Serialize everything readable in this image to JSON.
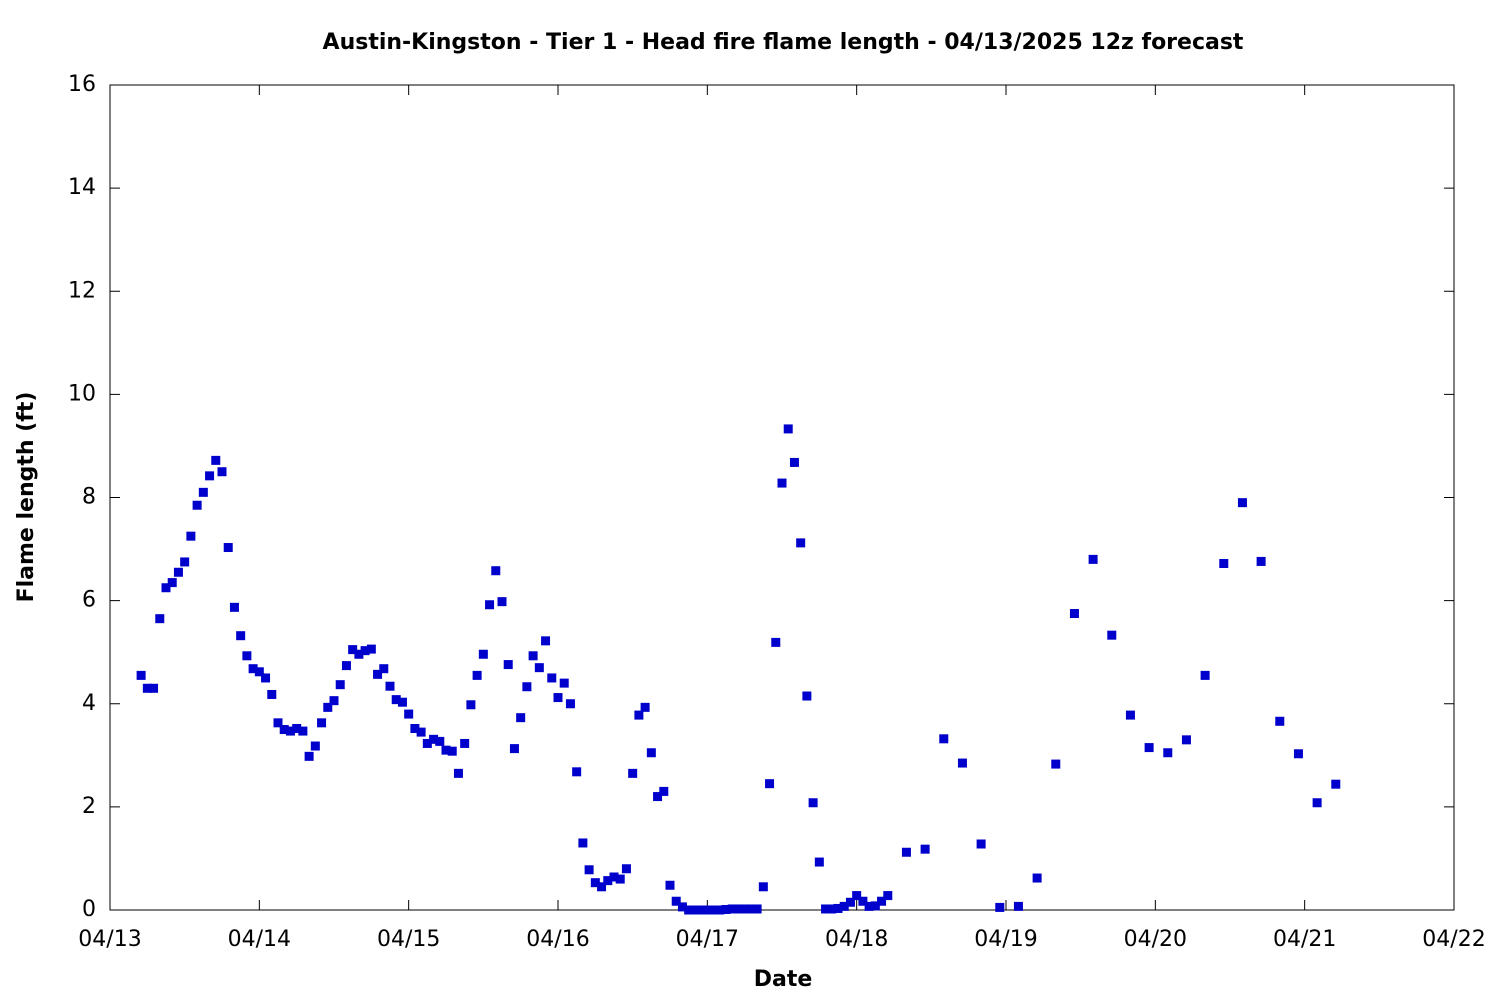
{
  "chart_data": {
    "type": "scatter",
    "title": "Austin-Kingston - Tier 1 - Head fire flame length - 04/13/2025 12z forecast",
    "xlabel": "Date",
    "ylabel": "Flame length (ft)",
    "color": "#0000cc",
    "xlim": [
      0,
      216
    ],
    "xticks": [
      {
        "value": 0,
        "label": "04/13"
      },
      {
        "value": 24,
        "label": "04/14"
      },
      {
        "value": 48,
        "label": "04/15"
      },
      {
        "value": 72,
        "label": "04/16"
      },
      {
        "value": 96,
        "label": "04/17"
      },
      {
        "value": 120,
        "label": "04/18"
      },
      {
        "value": 144,
        "label": "04/19"
      },
      {
        "value": 168,
        "label": "04/20"
      },
      {
        "value": 192,
        "label": "04/21"
      },
      {
        "value": 216,
        "label": "04/22"
      }
    ],
    "ylim": [
      0,
      16
    ],
    "yticks": [
      0,
      2,
      4,
      6,
      8,
      10,
      12,
      14,
      16
    ],
    "x": [
      5,
      6,
      7,
      8,
      9,
      10,
      11,
      12,
      13,
      14,
      15,
      16,
      17,
      18,
      19,
      20,
      21,
      22,
      23,
      24,
      25,
      26,
      27,
      28,
      29,
      30,
      31,
      32,
      33,
      34,
      35,
      36,
      37,
      38,
      39,
      40,
      41,
      42,
      43,
      44,
      45,
      46,
      47,
      48,
      49,
      50,
      51,
      52,
      53,
      54,
      55,
      56,
      57,
      58,
      59,
      60,
      61,
      62,
      63,
      64,
      65,
      66,
      67,
      68,
      69,
      70,
      71,
      72,
      73,
      74,
      75,
      76,
      77,
      78,
      79,
      80,
      81,
      82,
      83,
      84,
      85,
      86,
      87,
      88,
      89,
      90,
      91,
      92,
      93,
      94,
      95,
      96,
      97,
      98,
      99,
      100,
      101,
      102,
      103,
      104,
      105,
      106,
      107,
      108,
      109,
      110,
      111,
      112,
      113,
      114,
      115,
      116,
      117,
      118,
      119,
      120,
      121,
      122,
      123,
      124,
      125,
      128,
      131,
      134,
      137,
      140,
      143,
      146,
      149,
      152,
      155,
      158,
      161,
      164,
      167,
      170,
      173,
      176,
      179,
      182,
      185,
      188,
      191,
      194,
      197
    ],
    "values": [
      4.55,
      4.3,
      4.3,
      5.65,
      6.25,
      6.35,
      6.55,
      6.75,
      7.25,
      7.85,
      8.1,
      8.42,
      8.72,
      8.5,
      7.03,
      5.87,
      5.32,
      4.93,
      4.68,
      4.62,
      4.5,
      4.18,
      3.63,
      3.5,
      3.47,
      3.52,
      3.47,
      2.98,
      3.18,
      3.63,
      3.93,
      4.06,
      4.37,
      4.74,
      5.05,
      4.96,
      5.03,
      5.06,
      4.57,
      4.68,
      4.34,
      4.08,
      4.03,
      3.8,
      3.52,
      3.45,
      3.23,
      3.31,
      3.27,
      3.1,
      3.08,
      2.65,
      3.23,
      3.98,
      4.55,
      4.96,
      5.92,
      6.58,
      5.98,
      4.76,
      3.13,
      3.73,
      4.33,
      4.93,
      4.7,
      5.22,
      4.5,
      4.12,
      4.4,
      4.0,
      2.68,
      1.3,
      0.78,
      0.53,
      0.45,
      0.57,
      0.64,
      0.6,
      0.8,
      2.65,
      3.78,
      3.93,
      3.05,
      2.2,
      2.3,
      0.48,
      0.17,
      0.06,
      0,
      0,
      0,
      0,
      0,
      0,
      0.01,
      0.02,
      0.02,
      0.02,
      0.02,
      0.02,
      0.45,
      2.45,
      5.19,
      8.28,
      9.33,
      8.68,
      7.12,
      4.15,
      2.08,
      0.93,
      0.02,
      0.02,
      0.03,
      0.07,
      0.15,
      0.28,
      0.17,
      0.07,
      0.08,
      0.17,
      0.28,
      1.12,
      1.18,
      3.32,
      2.85,
      1.28,
      0.05,
      0.07,
      0.62,
      2.83,
      5.75,
      6.8,
      5.33,
      3.78,
      3.15,
      3.05,
      3.3,
      4.55,
      6.72,
      7.9,
      6.76,
      3.66,
      3.03,
      2.08,
      2.44
    ]
  }
}
